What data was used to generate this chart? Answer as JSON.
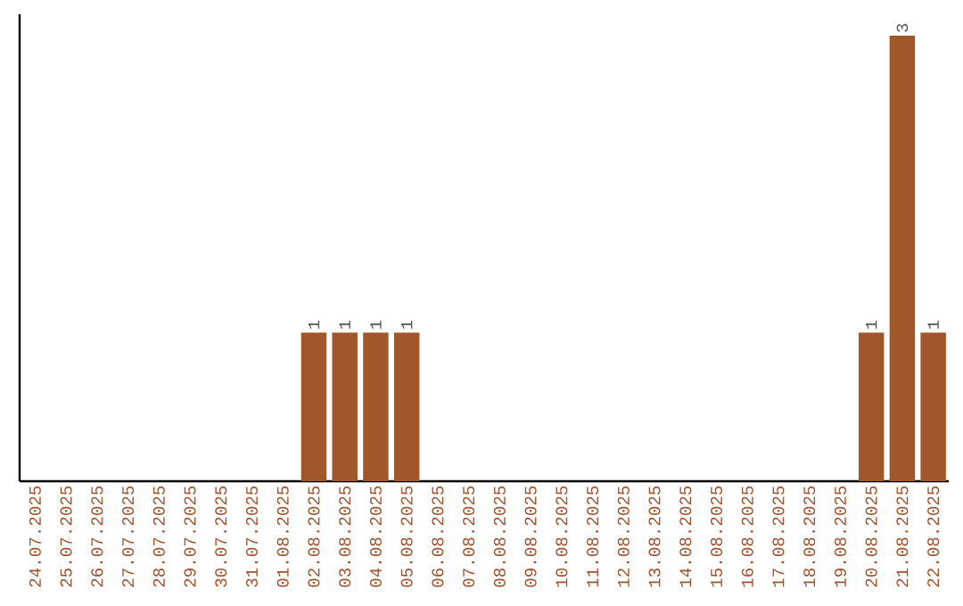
{
  "chart_data": {
    "type": "bar",
    "categories": [
      "24.07.2025",
      "25.07.2025",
      "26.07.2025",
      "27.07.2025",
      "28.07.2025",
      "29.07.2025",
      "30.07.2025",
      "31.07.2025",
      "01.08.2025",
      "02.08.2025",
      "03.08.2025",
      "04.08.2025",
      "05.08.2025",
      "06.08.2025",
      "07.08.2025",
      "08.08.2025",
      "09.08.2025",
      "10.08.2025",
      "11.08.2025",
      "12.08.2025",
      "13.08.2025",
      "14.08.2025",
      "15.08.2025",
      "16.08.2025",
      "17.08.2025",
      "18.08.2025",
      "19.08.2025",
      "20.08.2025",
      "21.08.2025",
      "22.08.2025"
    ],
    "values": [
      0,
      0,
      0,
      0,
      0,
      0,
      0,
      0,
      0,
      1,
      1,
      1,
      1,
      0,
      0,
      0,
      0,
      0,
      0,
      0,
      0,
      0,
      0,
      0,
      0,
      0,
      0,
      1,
      3,
      1
    ],
    "value_labels": [
      null,
      null,
      null,
      null,
      null,
      null,
      null,
      null,
      null,
      "1",
      "1",
      "1",
      "1",
      null,
      null,
      null,
      null,
      null,
      null,
      null,
      null,
      null,
      null,
      null,
      null,
      null,
      null,
      "1",
      "3",
      "1"
    ],
    "color": "#a0582a",
    "tick_labels": "x"
  }
}
